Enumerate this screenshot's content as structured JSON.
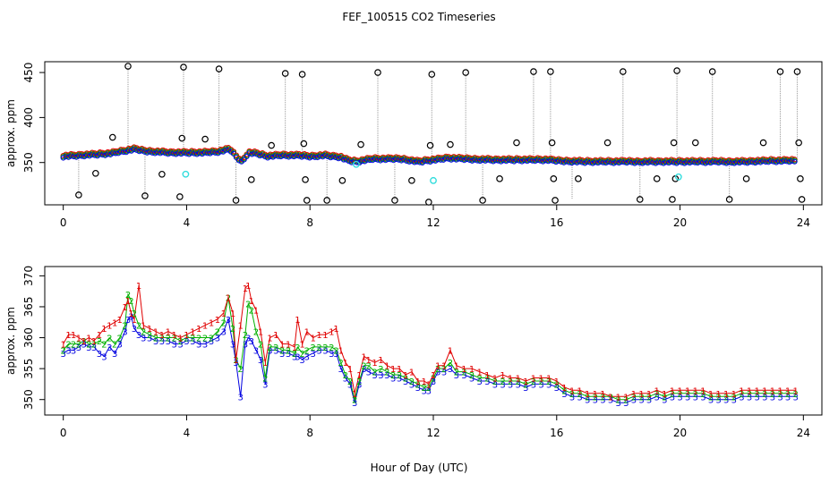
{
  "figure": {
    "title": "FEF_100515  CO2 Timeseries",
    "xlabel": "Hour of Day (UTC)",
    "colors": {
      "black": "#000000",
      "red": "#e00000",
      "green": "#00b000",
      "blue": "#0000e0",
      "cyan": "#33dddd",
      "gray": "#999999"
    }
  },
  "chart_data": [
    {
      "type": "scatter",
      "title": "FEF_100515  CO2 Timeseries",
      "xlabel": "Hour of Day (UTC)",
      "ylabel": "approx. ppm",
      "xlim": [
        -0.6,
        24.6
      ],
      "ylim": [
        303,
        462
      ],
      "xticks": [
        0,
        4,
        8,
        12,
        16,
        20,
        24
      ],
      "yticks": [
        350,
        400,
        450
      ],
      "series": [
        {
          "name": "black circles (outliers)",
          "color": "#000000",
          "points": [
            [
              0.5,
              314
            ],
            [
              1.05,
              338
            ],
            [
              1.6,
              378
            ],
            [
              2.1,
              457
            ],
            [
              2.65,
              313
            ],
            [
              3.2,
              337
            ],
            [
              3.78,
              312
            ],
            [
              3.85,
              377
            ],
            [
              3.9,
              456
            ],
            [
              4.6,
              376
            ],
            [
              5.05,
              454
            ],
            [
              5.6,
              308
            ],
            [
              6.1,
              331
            ],
            [
              6.75,
              369
            ],
            [
              7.2,
              449
            ],
            [
              7.75,
              448
            ],
            [
              7.8,
              371
            ],
            [
              7.85,
              331
            ],
            [
              7.9,
              308
            ],
            [
              8.55,
              308
            ],
            [
              9.05,
              330
            ],
            [
              9.65,
              370
            ],
            [
              10.2,
              450
            ],
            [
              10.75,
              308
            ],
            [
              11.3,
              330
            ],
            [
              11.85,
              306
            ],
            [
              11.9,
              369
            ],
            [
              11.95,
              448
            ],
            [
              12.55,
              370
            ],
            [
              13.05,
              450
            ],
            [
              13.6,
              308
            ],
            [
              14.15,
              332
            ],
            [
              14.7,
              372
            ],
            [
              15.25,
              451
            ],
            [
              15.8,
              451
            ],
            [
              15.85,
              372
            ],
            [
              15.9,
              332
            ],
            [
              15.95,
              308
            ],
            [
              16.7,
              332
            ],
            [
              17.65,
              372
            ],
            [
              18.15,
              451
            ],
            [
              18.7,
              309
            ],
            [
              19.25,
              332
            ],
            [
              19.75,
              309
            ],
            [
              19.8,
              372
            ],
            [
              19.85,
              332
            ],
            [
              19.9,
              452
            ],
            [
              20.5,
              372
            ],
            [
              21.05,
              451
            ],
            [
              21.6,
              309
            ],
            [
              22.15,
              332
            ],
            [
              22.7,
              372
            ],
            [
              23.25,
              451
            ],
            [
              23.8,
              451
            ],
            [
              23.85,
              372
            ],
            [
              23.9,
              332
            ],
            [
              23.95,
              309
            ]
          ],
          "spike_lines": [
            [
              2.1,
              457,
              362
            ],
            [
              3.9,
              456,
              360
            ],
            [
              5.05,
              454,
              360
            ],
            [
              7.2,
              449,
              357
            ],
            [
              7.75,
              448,
              357
            ],
            [
              10.2,
              450,
              353
            ],
            [
              11.95,
              448,
              352
            ],
            [
              13.05,
              450,
              354
            ],
            [
              15.25,
              451,
              352
            ],
            [
              15.8,
              451,
              352
            ],
            [
              18.15,
              451,
              350
            ],
            [
              19.9,
              452,
              350
            ],
            [
              21.05,
              451,
              350
            ],
            [
              23.25,
              451,
              350
            ],
            [
              23.8,
              451,
              350
            ],
            [
              0.5,
              314,
              356
            ],
            [
              2.65,
              313,
              362
            ],
            [
              5.6,
              308,
              360
            ],
            [
              8.55,
              308,
              357
            ],
            [
              10.75,
              308,
              353
            ],
            [
              13.6,
              308,
              353
            ],
            [
              16.5,
              310,
              351
            ],
            [
              18.7,
              309,
              350
            ],
            [
              21.6,
              309,
              350
            ]
          ]
        },
        {
          "name": "cyan points",
          "color": "#33dddd",
          "points": [
            [
              3.97,
              337
            ],
            [
              12.0,
              330
            ],
            [
              19.95,
              334
            ],
            [
              9.5,
              348
            ]
          ]
        },
        {
          "name": "background trace (red/green/blue)",
          "colors": [
            "#e00000",
            "#00b000",
            "#0000e0"
          ],
          "x": [
            0,
            0.5,
            1,
            1.5,
            2,
            2.3,
            2.6,
            3,
            3.5,
            4,
            4.5,
            5,
            5.4,
            5.6,
            5.8,
            6,
            6.3,
            6.6,
            7,
            7.5,
            8,
            8.5,
            9,
            9.2,
            9.5,
            10,
            10.5,
            11,
            11.5,
            12,
            12.5,
            13,
            14,
            15,
            15.7,
            16,
            17,
            18,
            19,
            20,
            21,
            22,
            23,
            23.7
          ],
          "values": [
            356,
            357,
            358,
            359,
            362,
            364,
            362,
            361,
            360,
            360,
            360,
            361,
            364,
            356,
            350,
            360,
            359,
            356,
            357,
            357,
            356,
            357,
            355,
            352,
            350,
            353,
            353,
            353,
            350,
            352,
            354,
            353,
            352,
            352,
            352,
            351,
            350,
            350,
            350,
            350,
            350,
            350,
            351,
            351
          ]
        }
      ]
    },
    {
      "type": "line",
      "ylabel": "approx. ppm",
      "xlabel": "Hour of Day (UTC)",
      "xlim": [
        -0.6,
        24.6
      ],
      "ylim": [
        347.5,
        371.5
      ],
      "xticks": [
        0,
        4,
        8,
        12,
        16,
        20,
        24
      ],
      "yticks": [
        350,
        355,
        360,
        365,
        370
      ],
      "x": [
        0.0,
        0.17,
        0.33,
        0.5,
        0.67,
        0.83,
        1.0,
        1.17,
        1.33,
        1.5,
        1.67,
        1.83,
        2.0,
        2.1,
        2.2,
        2.3,
        2.45,
        2.6,
        2.8,
        3.0,
        3.2,
        3.4,
        3.6,
        3.8,
        4.0,
        4.2,
        4.4,
        4.6,
        4.8,
        5.0,
        5.2,
        5.35,
        5.5,
        5.6,
        5.75,
        5.9,
        6.0,
        6.1,
        6.25,
        6.4,
        6.55,
        6.7,
        6.9,
        7.1,
        7.3,
        7.5,
        7.6,
        7.75,
        7.9,
        8.1,
        8.3,
        8.5,
        8.7,
        8.85,
        9.0,
        9.15,
        9.3,
        9.45,
        9.6,
        9.75,
        9.9,
        10.1,
        10.3,
        10.5,
        10.7,
        10.9,
        11.1,
        11.3,
        11.5,
        11.7,
        11.85,
        12.0,
        12.15,
        12.35,
        12.55,
        12.75,
        13.0,
        13.25,
        13.5,
        13.75,
        14.0,
        14.25,
        14.5,
        14.75,
        15.0,
        15.25,
        15.5,
        15.75,
        16.0,
        16.25,
        16.5,
        16.75,
        17.0,
        17.25,
        17.5,
        17.75,
        18.0,
        18.25,
        18.5,
        18.75,
        19.0,
        19.25,
        19.5,
        19.75,
        20.0,
        20.25,
        20.5,
        20.75,
        21.0,
        21.25,
        21.5,
        21.75,
        22.0,
        22.25,
        22.5,
        22.75,
        23.0,
        23.25,
        23.5,
        23.75
      ],
      "series": [
        {
          "name": "1",
          "color": "#e00000",
          "values": [
            359.0,
            360.5,
            360.5,
            360.0,
            359.5,
            360.0,
            359.5,
            360.5,
            361.5,
            362.0,
            362.5,
            363.0,
            365.0,
            366.0,
            364.0,
            363.0,
            368.5,
            362.0,
            361.5,
            361.0,
            360.5,
            361.0,
            360.5,
            360.0,
            360.5,
            361.0,
            361.5,
            362.0,
            362.5,
            363.0,
            364.0,
            366.5,
            364.0,
            356.5,
            362.0,
            368.0,
            368.5,
            366.0,
            364.5,
            361.0,
            356.0,
            360.0,
            360.5,
            359.0,
            359.0,
            358.5,
            363.0,
            359.0,
            361.0,
            360.0,
            360.5,
            360.5,
            361.0,
            361.5,
            358.0,
            356.0,
            355.0,
            351.0,
            354.0,
            357.0,
            356.5,
            356.0,
            356.5,
            355.5,
            355.0,
            355.0,
            354.0,
            354.5,
            353.0,
            353.0,
            352.5,
            354.0,
            355.5,
            355.5,
            358.0,
            355.5,
            355.0,
            355.0,
            354.5,
            354.0,
            353.5,
            354.0,
            353.5,
            353.5,
            353.0,
            353.5,
            353.5,
            353.5,
            353.0,
            352.0,
            351.5,
            351.5,
            351.0,
            351.0,
            351.0,
            350.5,
            350.5,
            350.5,
            351.0,
            351.0,
            351.0,
            351.5,
            351.0,
            351.5,
            351.5,
            351.5,
            351.5,
            351.5,
            351.0,
            351.0,
            351.0,
            351.0,
            351.5,
            351.5,
            351.5,
            351.5,
            351.5,
            351.5,
            351.5,
            351.5
          ]
        },
        {
          "name": "2",
          "color": "#00b000",
          "values": [
            358.0,
            359.0,
            359.0,
            359.0,
            359.5,
            359.0,
            359.0,
            359.5,
            359.0,
            360.0,
            359.0,
            360.0,
            362.0,
            367.0,
            366.0,
            364.0,
            362.0,
            361.0,
            360.5,
            360.0,
            360.0,
            360.0,
            360.0,
            359.5,
            360.0,
            360.0,
            360.0,
            360.0,
            360.0,
            361.0,
            362.5,
            366.5,
            361.5,
            356.5,
            355.0,
            360.5,
            365.5,
            364.5,
            361.0,
            359.0,
            353.5,
            358.5,
            358.5,
            358.0,
            358.0,
            357.5,
            358.5,
            357.5,
            358.0,
            358.5,
            358.5,
            358.5,
            358.5,
            358.0,
            356.0,
            354.0,
            353.0,
            350.0,
            353.0,
            355.5,
            355.5,
            354.5,
            355.0,
            354.5,
            354.0,
            354.0,
            353.5,
            353.0,
            352.5,
            352.0,
            352.0,
            353.5,
            355.0,
            355.0,
            356.0,
            354.5,
            354.5,
            354.0,
            353.5,
            353.5,
            353.0,
            353.0,
            353.0,
            353.0,
            352.5,
            353.0,
            353.0,
            353.0,
            352.5,
            351.5,
            351.0,
            351.0,
            350.5,
            350.5,
            350.5,
            350.5,
            350.0,
            350.0,
            350.5,
            350.5,
            350.5,
            351.0,
            350.5,
            351.0,
            351.0,
            351.0,
            351.0,
            351.0,
            350.5,
            350.5,
            350.5,
            350.5,
            351.0,
            351.0,
            351.0,
            351.0,
            351.0,
            351.0,
            351.0,
            351.0
          ]
        },
        {
          "name": "3",
          "color": "#0000e0",
          "values": [
            357.5,
            358.0,
            358.0,
            358.5,
            359.0,
            358.5,
            358.5,
            357.5,
            357.0,
            358.5,
            357.5,
            359.0,
            361.0,
            363.0,
            363.5,
            361.5,
            360.5,
            360.0,
            360.0,
            359.5,
            359.5,
            359.5,
            359.0,
            359.0,
            359.5,
            359.5,
            359.0,
            359.0,
            359.5,
            360.0,
            361.0,
            363.0,
            359.0,
            356.0,
            350.5,
            359.0,
            360.0,
            359.5,
            358.0,
            356.5,
            352.5,
            358.0,
            358.0,
            357.5,
            357.5,
            357.0,
            357.0,
            356.5,
            357.0,
            357.5,
            358.0,
            358.0,
            357.5,
            357.5,
            355.0,
            353.5,
            352.5,
            349.5,
            352.5,
            355.0,
            354.5,
            354.0,
            354.0,
            354.0,
            353.5,
            353.5,
            353.0,
            352.5,
            352.0,
            351.5,
            351.5,
            353.0,
            354.5,
            354.5,
            355.0,
            354.0,
            354.0,
            353.5,
            353.0,
            353.0,
            352.5,
            352.5,
            352.5,
            352.5,
            352.0,
            352.5,
            352.5,
            352.5,
            352.0,
            351.0,
            350.5,
            350.5,
            350.0,
            350.0,
            350.0,
            350.0,
            349.5,
            349.5,
            350.0,
            350.0,
            350.0,
            350.5,
            350.0,
            350.5,
            350.5,
            350.5,
            350.5,
            350.5,
            350.0,
            350.0,
            350.0,
            350.0,
            350.5,
            350.5,
            350.5,
            350.5,
            350.5,
            350.5,
            350.5,
            350.5
          ]
        }
      ]
    }
  ]
}
